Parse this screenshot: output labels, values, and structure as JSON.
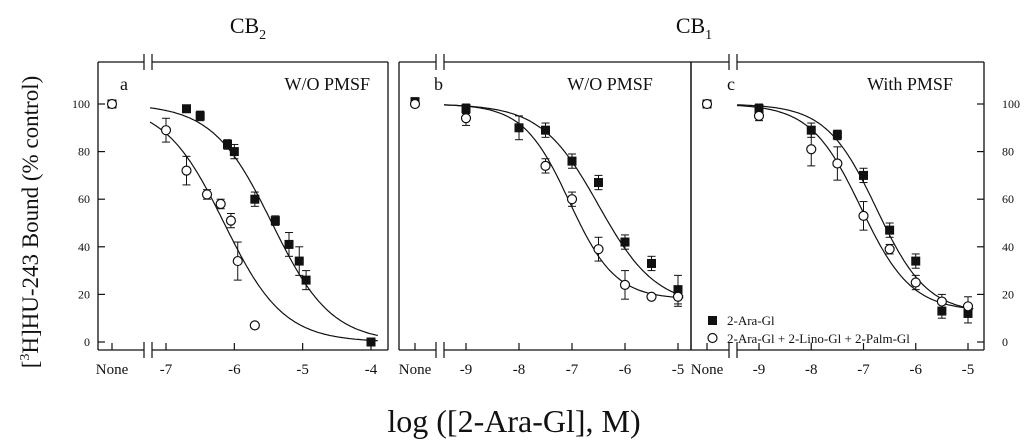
{
  "figure": {
    "ylabel_prefix": "3",
    "ylabel_rest": "H]HU-243 Bound (% control)",
    "ylabel_bracket": "[",
    "xlabel": "log ([2-Ara-Gl], M)",
    "receptor_cb2": {
      "base": "CB",
      "sub": "2"
    },
    "receptor_cb1": {
      "base": "CB",
      "sub": "1"
    },
    "none_label": "None",
    "colors": {
      "ink": "#111111",
      "background": "#ffffff"
    }
  },
  "chart_data": [
    {
      "type": "scatter",
      "panel": "a",
      "title": "W/O PMSF",
      "receptor": "CB2",
      "xlabel": "log ([2-Ara-Gl], M)",
      "ylabel": "[3H]HU-243 Bound (% control)",
      "xlim": [
        -7.6,
        -3.9
      ],
      "ylim": [
        0,
        100
      ],
      "x_ticks": [
        "None",
        "-7",
        "-6",
        "-5",
        "-4"
      ],
      "y_ticks": [
        0,
        20,
        40,
        60,
        80,
        100
      ],
      "series": [
        {
          "name": "2-Ara-Gl",
          "marker": "filled-square",
          "none_point": {
            "y": 100
          },
          "points": [
            {
              "x": -6.7,
              "y": 98,
              "err": 1
            },
            {
              "x": -6.5,
              "y": 95,
              "err": 2
            },
            {
              "x": -6.1,
              "y": 83,
              "err": 2
            },
            {
              "x": -6.0,
              "y": 80,
              "err": 3
            },
            {
              "x": -5.7,
              "y": 60,
              "err": 3
            },
            {
              "x": -5.4,
              "y": 51,
              "err": 2
            },
            {
              "x": -5.2,
              "y": 41,
              "err": 5
            },
            {
              "x": -5.05,
              "y": 34,
              "err": 6
            },
            {
              "x": -4.95,
              "y": 26,
              "err": 4
            },
            {
              "x": -4.0,
              "y": 0,
              "err": 0
            }
          ],
          "fit": {
            "top": 100,
            "bottom": 0,
            "logec50": -5.45,
            "hill": 1.0
          }
        },
        {
          "name": "2-Ara-Gl + 2-Lino-Gl + 2-Palm-Gl",
          "marker": "open-circle",
          "none_point": {
            "y": 100
          },
          "points": [
            {
              "x": -7.0,
              "y": 89,
              "err": 5
            },
            {
              "x": -6.7,
              "y": 72,
              "err": 6
            },
            {
              "x": -6.4,
              "y": 62,
              "err": 2
            },
            {
              "x": -6.2,
              "y": 58,
              "err": 2
            },
            {
              "x": -6.05,
              "y": 51,
              "err": 3
            },
            {
              "x": -5.95,
              "y": 34,
              "err": 8
            },
            {
              "x": -5.7,
              "y": 7,
              "err": 0
            }
          ],
          "fit": {
            "top": 100,
            "bottom": 0,
            "logec50": -6.15,
            "hill": 1.0
          }
        }
      ]
    },
    {
      "type": "scatter",
      "panel": "b",
      "title": "W/O PMSF",
      "receptor": "CB1",
      "xlabel": "log ([2-Ara-Gl], M)",
      "ylabel": "[3H]HU-243 Bound (% control)",
      "xlim": [
        -9.3,
        -4.9
      ],
      "ylim": [
        0,
        100
      ],
      "x_ticks": [
        "None",
        "-9",
        "-8",
        "-7",
        "-6",
        "-5"
      ],
      "series": [
        {
          "name": "2-Ara-Gl",
          "marker": "filled-square",
          "none_point": {
            "y": 101
          },
          "points": [
            {
              "x": -9.0,
              "y": 98,
              "err": 2
            },
            {
              "x": -8.0,
              "y": 90,
              "err": 5
            },
            {
              "x": -7.5,
              "y": 89,
              "err": 3
            },
            {
              "x": -7.0,
              "y": 76,
              "err": 3
            },
            {
              "x": -6.5,
              "y": 67,
              "err": 3
            },
            {
              "x": -6.0,
              "y": 42,
              "err": 3
            },
            {
              "x": -5.5,
              "y": 33,
              "err": 3
            },
            {
              "x": -5.0,
              "y": 22,
              "err": 6
            }
          ],
          "fit": {
            "top": 100,
            "bottom": 15,
            "logec50": -6.5,
            "hill": 0.8
          }
        },
        {
          "name": "2-Ara-Gl + 2-Lino-Gl + 2-Palm-Gl",
          "marker": "open-circle",
          "none_point": {
            "y": 100
          },
          "points": [
            {
              "x": -9.0,
              "y": 94,
              "err": 3
            },
            {
              "x": -7.5,
              "y": 74,
              "err": 3
            },
            {
              "x": -7.0,
              "y": 60,
              "err": 3
            },
            {
              "x": -6.5,
              "y": 39,
              "err": 5
            },
            {
              "x": -6.0,
              "y": 24,
              "err": 6
            },
            {
              "x": -5.5,
              "y": 19,
              "err": 0
            },
            {
              "x": -5.0,
              "y": 19,
              "err": 4
            }
          ],
          "fit": {
            "top": 100,
            "bottom": 18,
            "logec50": -7.05,
            "hill": 1.0
          }
        }
      ]
    },
    {
      "type": "scatter",
      "panel": "c",
      "title": "With PMSF",
      "receptor": "CB1",
      "xlabel": "log ([2-Ara-Gl], M)",
      "ylabel": "[3H]HU-243 Bound (% control)",
      "xlim": [
        -9.3,
        -4.9
      ],
      "ylim": [
        0,
        100
      ],
      "x_ticks": [
        "None",
        "-9",
        "-8",
        "-7",
        "-6",
        "-5"
      ],
      "y_ticks_right": [
        0,
        20,
        40,
        60,
        80,
        100
      ],
      "legend": "bottom-left",
      "series": [
        {
          "name": "2-Ara-Gl",
          "marker": "filled-square",
          "none_point": {
            "y": 100
          },
          "points": [
            {
              "x": -9.0,
              "y": 98,
              "err": 2
            },
            {
              "x": -8.0,
              "y": 89,
              "err": 3
            },
            {
              "x": -7.5,
              "y": 87,
              "err": 2
            },
            {
              "x": -7.0,
              "y": 70,
              "err": 3
            },
            {
              "x": -6.5,
              "y": 47,
              "err": 3
            },
            {
              "x": -6.0,
              "y": 34,
              "err": 3
            },
            {
              "x": -5.5,
              "y": 13,
              "err": 3
            },
            {
              "x": -5.0,
              "y": 12,
              "err": 4
            }
          ],
          "fit": {
            "top": 100,
            "bottom": 12,
            "logec50": -6.75,
            "hill": 0.9
          }
        },
        {
          "name": "2-Ara-Gl + 2-Lino-Gl + 2-Palm-Gl",
          "marker": "open-circle",
          "none_point": {
            "y": 100
          },
          "points": [
            {
              "x": -9.0,
              "y": 95,
              "err": 2
            },
            {
              "x": -8.0,
              "y": 81,
              "err": 7
            },
            {
              "x": -7.5,
              "y": 75,
              "err": 7
            },
            {
              "x": -7.0,
              "y": 53,
              "err": 6
            },
            {
              "x": -6.5,
              "y": 39,
              "err": 2
            },
            {
              "x": -6.0,
              "y": 25,
              "err": 3
            },
            {
              "x": -5.5,
              "y": 17,
              "err": 3
            },
            {
              "x": -5.0,
              "y": 15,
              "err": 4
            }
          ],
          "fit": {
            "top": 100,
            "bottom": 13,
            "logec50": -7.05,
            "hill": 0.9
          }
        }
      ]
    }
  ]
}
